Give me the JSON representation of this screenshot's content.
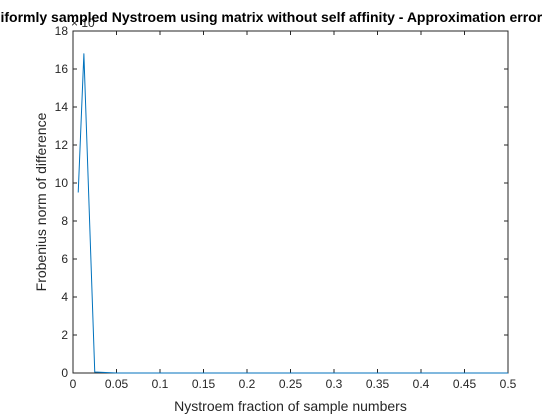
{
  "chart_data": {
    "type": "line",
    "title": "Uniformly sampled Nystroem using matrix without self affinity - Approximation error",
    "xlabel": "Nystroem fraction of sample numbers",
    "ylabel": "Frobenius norm of difference",
    "xlim": [
      0,
      0.5
    ],
    "ylim": [
      0,
      18
    ],
    "y_exponent_label": "× 10",
    "x_ticks": [
      0,
      0.05,
      0.1,
      0.15,
      0.2,
      0.25,
      0.3,
      0.35,
      0.4,
      0.45,
      0.5
    ],
    "x_tick_labels": [
      "0",
      "0.05",
      "0.1",
      "0.15",
      "0.2",
      "0.25",
      "0.3",
      "0.35",
      "0.4",
      "0.45",
      "0.5"
    ],
    "y_ticks": [
      0,
      2,
      4,
      6,
      8,
      10,
      12,
      14,
      16,
      18
    ],
    "y_tick_labels": [
      "0",
      "2",
      "4",
      "6",
      "8",
      "10",
      "12",
      "14",
      "16",
      "18"
    ],
    "grid": false,
    "box": true,
    "series": [
      {
        "color": "#0072bd",
        "x": [
          0.006,
          0.0125,
          0.025,
          0.05,
          0.1,
          0.15,
          0.2,
          0.25,
          0.3,
          0.35,
          0.4,
          0.45,
          0.5
        ],
        "values": [
          9.5,
          16.8,
          0.05,
          0.0,
          0.0,
          0.0,
          0.0,
          0.0,
          0.0,
          0.0,
          0.0,
          0.0,
          0.0
        ]
      }
    ]
  }
}
